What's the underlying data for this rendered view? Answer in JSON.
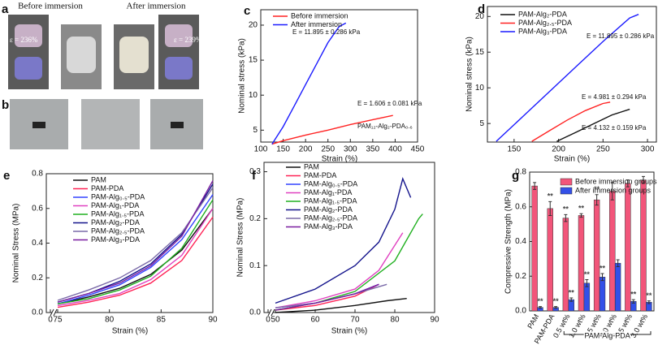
{
  "figure_panels": [
    {
      "label": "a",
      "texts": [
        "Before immersion",
        "After immersion",
        "ε = 236%",
        "ε = 239%"
      ]
    },
    {
      "label": "b",
      "texts": []
    }
  ],
  "chart_data": [
    {
      "type": "line",
      "panel": "c",
      "xlabel": "Strain (%)",
      "ylabel": "Nominal stress (kPa)",
      "xlim": [
        100,
        450
      ],
      "ylim": [
        3.3,
        22.2
      ],
      "xticks": [
        100,
        150,
        200,
        250,
        300,
        350,
        400,
        450
      ],
      "yticks": [
        5,
        10,
        15,
        20
      ],
      "legend": "upper left",
      "series": [
        {
          "name": "Before immersion",
          "color": "#ff2222",
          "x": [
            125,
            150,
            200,
            250,
            300,
            350,
            395
          ],
          "values": [
            3.0,
            3.5,
            4.3,
            5.0,
            5.8,
            6.5,
            7.1
          ]
        },
        {
          "name": "After immersion",
          "color": "#1a1aff",
          "x": [
            125,
            150,
            175,
            200,
            225,
            250,
            275,
            290
          ],
          "values": [
            3.0,
            5.5,
            8.5,
            11.5,
            14.5,
            17.5,
            19.8,
            20.3
          ]
        }
      ],
      "annotations": [
        "E = 11.895 ± 0.286 kPa",
        "E = 1.606 ± 0.081 kPa",
        "PAM₁₂-Alg₂-PDA₀.₆"
      ]
    },
    {
      "type": "line",
      "panel": "d",
      "xlabel": "Strain (%)",
      "ylabel": "Nominal stress (kPa)",
      "xlim": [
        120,
        310
      ],
      "ylim": [
        2.4,
        21.4
      ],
      "xticks": [
        150,
        200,
        250,
        300
      ],
      "yticks": [
        5,
        10,
        15,
        20
      ],
      "legend": "upper left",
      "series": [
        {
          "name": "PAM-Alg₂-PDA",
          "color": "#111111",
          "x": [
            198,
            220,
            240,
            260,
            280
          ],
          "values": [
            2.5,
            3.8,
            5.0,
            6.2,
            7.0
          ]
        },
        {
          "name": "PAM-Alg₂.₅-PDA",
          "color": "#ff2222",
          "x": [
            170,
            190,
            210,
            230,
            250,
            258
          ],
          "values": [
            2.5,
            4.0,
            5.5,
            6.8,
            7.8,
            8.0
          ]
        },
        {
          "name": "PAM-Alg₃-PDA",
          "color": "#1a1aff",
          "x": [
            130,
            160,
            190,
            220,
            250,
            280,
            290
          ],
          "values": [
            2.5,
            6.0,
            9.5,
            13.0,
            16.5,
            19.8,
            20.3
          ]
        }
      ],
      "annotations": [
        "E = 11.895 ± 0.286 kPa",
        "E = 4.981 ± 0.294 kPa",
        "E = 4.132 ± 0.159 kPa"
      ]
    },
    {
      "type": "line",
      "panel": "e",
      "xlabel": "Strain (%)",
      "ylabel": "Nominal Stress (MPa)",
      "xlim": [
        0,
        90
      ],
      "axis_break": true,
      "ylim": [
        0,
        0.8
      ],
      "xticks": [
        0,
        75,
        80,
        85,
        90
      ],
      "yticks": [
        {
          "value": 0,
          "label": "0.0"
        },
        0.2,
        0.4,
        0.6,
        0.8
      ],
      "legend": "upper left",
      "series": [
        {
          "name": "PAM",
          "color": "#111111",
          "x": [
            75,
            78,
            81,
            84,
            87,
            90
          ],
          "values": [
            0.05,
            0.09,
            0.14,
            0.22,
            0.36,
            0.6
          ]
        },
        {
          "name": "PAM-PDA",
          "color": "#ff2255",
          "x": [
            75,
            78,
            81,
            84,
            87,
            90
          ],
          "values": [
            0.03,
            0.06,
            0.1,
            0.17,
            0.3,
            0.55
          ]
        },
        {
          "name": "PAM-Alg₀.₅-PDA",
          "color": "#3344ff",
          "x": [
            75,
            78,
            81,
            84,
            87,
            90
          ],
          "values": [
            0.05,
            0.1,
            0.16,
            0.26,
            0.42,
            0.68
          ]
        },
        {
          "name": "PAM-Alg₁-PDA",
          "color": "#e040c0",
          "x": [
            75,
            78,
            81,
            84,
            87,
            90
          ],
          "values": [
            0.04,
            0.07,
            0.11,
            0.19,
            0.33,
            0.6
          ]
        },
        {
          "name": "PAM-Alg₁.₅-PDA",
          "color": "#20b020",
          "x": [
            75,
            78,
            81,
            84,
            87,
            90
          ],
          "values": [
            0.05,
            0.08,
            0.13,
            0.21,
            0.37,
            0.65
          ]
        },
        {
          "name": "PAM-Alg₂-PDA",
          "color": "#14148c",
          "x": [
            75,
            78,
            81,
            84,
            87,
            90
          ],
          "values": [
            0.06,
            0.11,
            0.18,
            0.28,
            0.45,
            0.74
          ]
        },
        {
          "name": "PAM-Alg₂.₅-PDA",
          "color": "#7a6aa8",
          "x": [
            75,
            78,
            81,
            84,
            87,
            90
          ],
          "values": [
            0.07,
            0.13,
            0.2,
            0.3,
            0.46,
            0.72
          ]
        },
        {
          "name": "PAM-Alg₃-PDA",
          "color": "#7a1fa0",
          "x": [
            75,
            78,
            81,
            84,
            87,
            90
          ],
          "values": [
            0.06,
            0.11,
            0.17,
            0.27,
            0.44,
            0.76
          ]
        }
      ]
    },
    {
      "type": "line",
      "panel": "f",
      "xlabel": "Strain (%)",
      "ylabel": "Nominal Stress (MPa)",
      "xlim": [
        0,
        90
      ],
      "axis_break": true,
      "ylim": [
        0,
        0.32
      ],
      "xticks": [
        0,
        50,
        60,
        70,
        80,
        90
      ],
      "yticks": [
        {
          "value": 0,
          "label": "0.0"
        },
        0.1,
        0.2,
        0.3
      ],
      "legend": "upper left",
      "series": [
        {
          "name": "PAM",
          "color": "#111111",
          "x": [
            50,
            60,
            70,
            78,
            83
          ],
          "values": [
            0.0,
            0.005,
            0.015,
            0.025,
            0.03
          ]
        },
        {
          "name": "PAM-PDA",
          "color": "#ff2255",
          "x": [
            50,
            60,
            70,
            76
          ],
          "values": [
            0.005,
            0.015,
            0.035,
            0.06
          ]
        },
        {
          "name": "PAM-Alg₀.₅-PDA",
          "color": "#3344ff",
          "x": [
            50,
            60,
            70,
            76
          ],
          "values": [
            0.01,
            0.02,
            0.04,
            0.06
          ]
        },
        {
          "name": "PAM-Alg₁-PDA",
          "color": "#e040c0",
          "x": [
            50,
            60,
            70,
            76,
            82
          ],
          "values": [
            0.01,
            0.025,
            0.05,
            0.09,
            0.17
          ]
        },
        {
          "name": "PAM-Alg₁.₅-PDA",
          "color": "#20b020",
          "x": [
            50,
            60,
            70,
            80,
            86,
            87
          ],
          "values": [
            0.005,
            0.02,
            0.045,
            0.11,
            0.2,
            0.21
          ]
        },
        {
          "name": "PAM-Alg₂-PDA",
          "color": "#14148c",
          "x": [
            50,
            60,
            70,
            76,
            80,
            82,
            84
          ],
          "values": [
            0.02,
            0.05,
            0.1,
            0.15,
            0.22,
            0.285,
            0.245
          ]
        },
        {
          "name": "PAM-Alg₂.₅-PDA",
          "color": "#7a6aa8",
          "x": [
            50,
            60,
            70,
            78
          ],
          "values": [
            0.01,
            0.02,
            0.04,
            0.06
          ]
        },
        {
          "name": "PAM-Alg₃-PDA",
          "color": "#7a1fa0",
          "x": [
            50,
            60,
            70,
            76
          ],
          "values": [
            0.005,
            0.02,
            0.04,
            0.06
          ]
        }
      ]
    },
    {
      "type": "bar",
      "panel": "g",
      "ylabel": "Compressive Strength (MPa)",
      "categories": [
        "PAM",
        "PAM-PDA",
        "0.5 wt%",
        "1.0 wt%",
        "1.5 wt%",
        "2.0 wt%",
        "2.5 wt%",
        "3.0 wt%"
      ],
      "group_label": "PAM-Alg-PDA",
      "ylim": [
        0,
        0.8
      ],
      "yticks": [
        {
          "value": 0,
          "label": "0.0"
        },
        0.2,
        0.4,
        0.6,
        0.8
      ],
      "legend": "upper right",
      "series": [
        {
          "name": "Before immersion groups",
          "color": "#f2557a",
          "values": [
            0.72,
            0.59,
            0.535,
            0.55,
            0.64,
            0.69,
            0.735,
            0.755
          ],
          "errors": [
            0.02,
            0.04,
            0.02,
            0.01,
            0.03,
            0.05,
            0.02,
            0.02
          ],
          "significance": [
            null,
            "**",
            "**",
            "**",
            "**",
            null,
            null,
            null
          ]
        },
        {
          "name": "After immersion groups",
          "color": "#3350e8",
          "values": [
            0.02,
            0.02,
            0.065,
            0.16,
            0.195,
            0.275,
            0.055,
            0.05
          ],
          "errors": [
            0.005,
            0.005,
            0.01,
            0.02,
            0.02,
            0.02,
            0.01,
            0.008
          ],
          "significance": [
            "**",
            "**",
            "**",
            "**",
            "**",
            null,
            "**",
            "**"
          ]
        }
      ]
    }
  ]
}
